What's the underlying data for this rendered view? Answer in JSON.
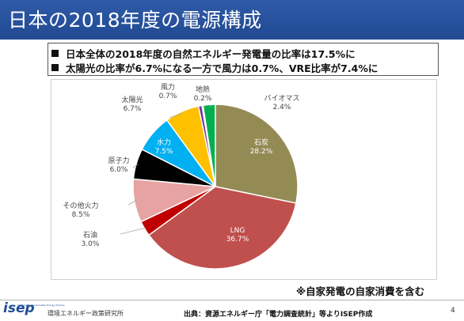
{
  "header": {
    "title": "日本の2018年度の電源構成"
  },
  "bullets": [
    "日本全体の2018年度の自然エネルギー発電量の比率は17.5%に",
    "太陽光の比率が6.7%になる一方で風力は0.7%、VRE比率が7.4%に"
  ],
  "chart_data": {
    "type": "pie",
    "title": "",
    "slices": [
      {
        "label": "石炭",
        "value": 28.2,
        "display": "28.2%",
        "color": "#948a54"
      },
      {
        "label": "LNG",
        "value": 36.7,
        "display": "36.7%",
        "color": "#c0504d"
      },
      {
        "label": "石油",
        "value": 3.0,
        "display": "3.0%",
        "color": "#c00000"
      },
      {
        "label": "その他火力",
        "value": 8.5,
        "display": "8.5%",
        "color": "#e6a3a1"
      },
      {
        "label": "原子力",
        "value": 6.0,
        "display": "6.0%",
        "color": "#000000"
      },
      {
        "label": "水力",
        "value": 7.5,
        "display": "7.5%",
        "color": "#00b0f0"
      },
      {
        "label": "太陽光",
        "value": 6.7,
        "display": "6.7%",
        "color": "#ffc000"
      },
      {
        "label": "風力",
        "value": 0.7,
        "display": "0.7%",
        "color": "#7030a0"
      },
      {
        "label": "地熱",
        "value": 0.2,
        "display": "0.2%",
        "color": "#e46c0a"
      },
      {
        "label": "バイオマス",
        "value": 2.4,
        "display": "2.4%",
        "color": "#00b050"
      }
    ]
  },
  "note": "※自家発電の自家消費を含む",
  "footer": {
    "logo": "isep",
    "logo_sub": "Institute for Sustainable Energy Policies",
    "org": "環境エネルギー政策研究所",
    "source": "出典：資源エネルギー庁「電力調査統計」等よりISEP作成",
    "page": "4"
  }
}
